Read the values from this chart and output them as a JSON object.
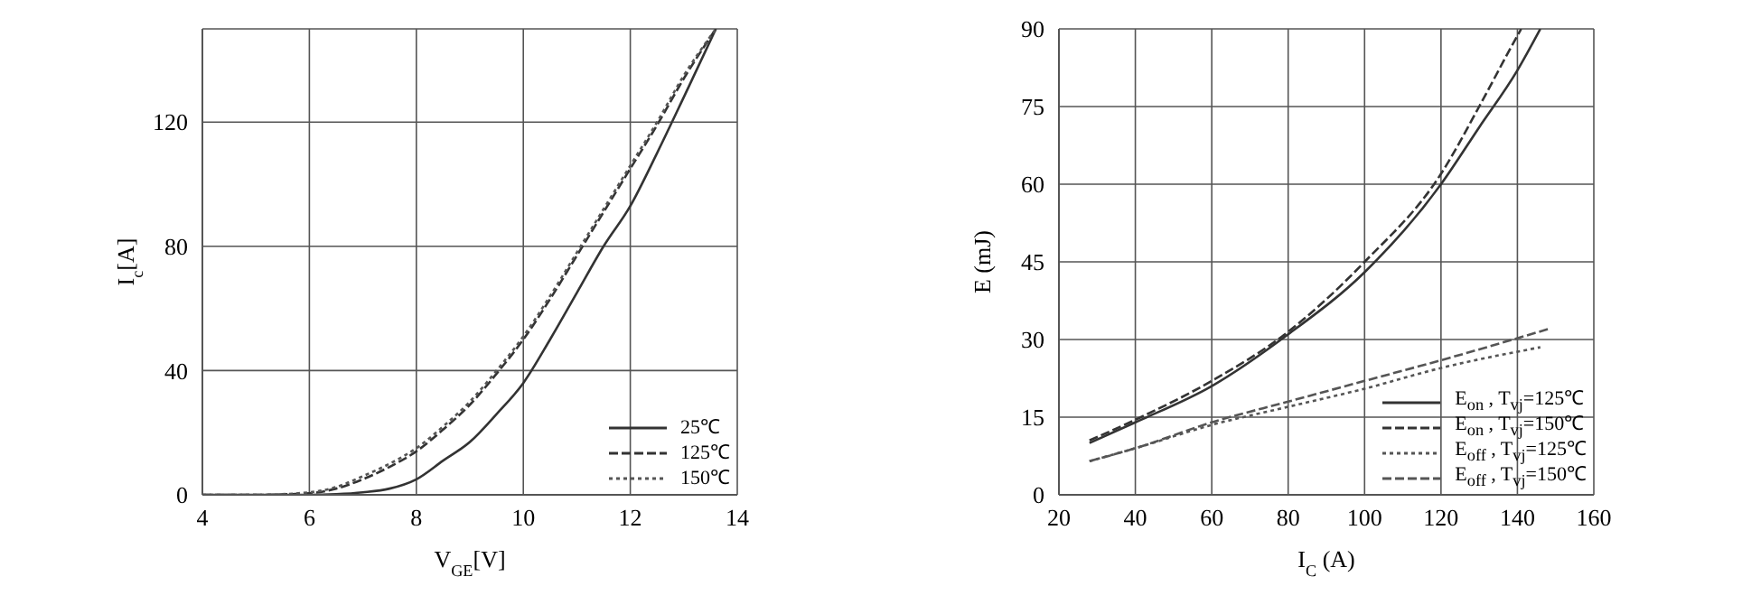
{
  "chart_data": [
    {
      "type": "line",
      "xlabel": "V$_{GE}$[V]",
      "ylabel": "I$_{c}$[A]",
      "xlim": [
        4,
        14
      ],
      "xticks": [
        4,
        6,
        8,
        10,
        12,
        14
      ],
      "ylim": [
        0,
        150
      ],
      "yticks": [
        0,
        40,
        80,
        120
      ],
      "grid": true,
      "legend": "bottom right",
      "marker": "none",
      "x": [
        4,
        5,
        6,
        6.5,
        7,
        7.5,
        8,
        8.5,
        9,
        9.5,
        10,
        10.5,
        11,
        11.5,
        12,
        12.5,
        13,
        13.6
      ],
      "series": [
        {
          "name": "25℃",
          "color": "#333333",
          "line_style": "solid",
          "values": [
            0,
            0,
            0,
            0.2,
            0.8,
            2,
            5,
            11,
            17,
            26,
            36,
            50,
            65,
            80,
            93,
            110,
            128,
            150
          ]
        },
        {
          "name": "125℃",
          "color": "#333333",
          "line_style": "dashed",
          "values": [
            0,
            0,
            0.5,
            2,
            5,
            9,
            14,
            21,
            29,
            39,
            50,
            63,
            77,
            91,
            105,
            119,
            134,
            150
          ]
        },
        {
          "name": "150℃",
          "color": "#555555",
          "line_style": "dotted",
          "values": [
            0,
            0,
            0.8,
            2.5,
            6,
            10,
            15,
            22,
            30,
            40,
            51,
            64,
            78,
            92,
            106,
            120,
            135,
            150
          ]
        }
      ]
    },
    {
      "type": "line",
      "xlabel": "I$_{C}$ (A)",
      "ylabel": "E (mJ)",
      "xlim": [
        20,
        160
      ],
      "xticks": [
        20,
        40,
        60,
        80,
        100,
        120,
        140,
        160
      ],
      "ylim": [
        0,
        90
      ],
      "yticks": [
        0,
        15,
        30,
        45,
        60,
        75,
        90
      ],
      "grid": true,
      "legend": "bottom right",
      "marker": "none",
      "series": [
        {
          "name": "E$_{on}$ , T$_{vj}$=125℃",
          "color": "#333333",
          "line_style": "solid",
          "x": [
            28,
            40,
            60,
            80,
            100,
            120,
            130,
            140,
            146
          ],
          "values": [
            10,
            14,
            21,
            31,
            43,
            60,
            71,
            82,
            90
          ]
        },
        {
          "name": "E$_{on}$ , T$_{vj}$=150℃",
          "color": "#333333",
          "line_style": "dashed",
          "x": [
            28,
            40,
            60,
            80,
            100,
            120,
            130,
            138,
            141
          ],
          "values": [
            10.5,
            14.5,
            22,
            31.5,
            45,
            62,
            75,
            86,
            90
          ]
        },
        {
          "name": "E$_{off}$ , T$_{vj}$=125℃",
          "color": "#555555",
          "line_style": "dotted",
          "x": [
            28,
            40,
            60,
            80,
            100,
            120,
            146
          ],
          "values": [
            6.5,
            9,
            13.5,
            17,
            20.5,
            24.5,
            28.5
          ]
        },
        {
          "name": "E$_{off}$ , T$_{vj}$=150℃",
          "color": "#555555",
          "line_style": "dashed",
          "x": [
            28,
            40,
            60,
            80,
            100,
            120,
            148
          ],
          "values": [
            6.5,
            9,
            14,
            18,
            22,
            26,
            32
          ]
        }
      ]
    }
  ]
}
